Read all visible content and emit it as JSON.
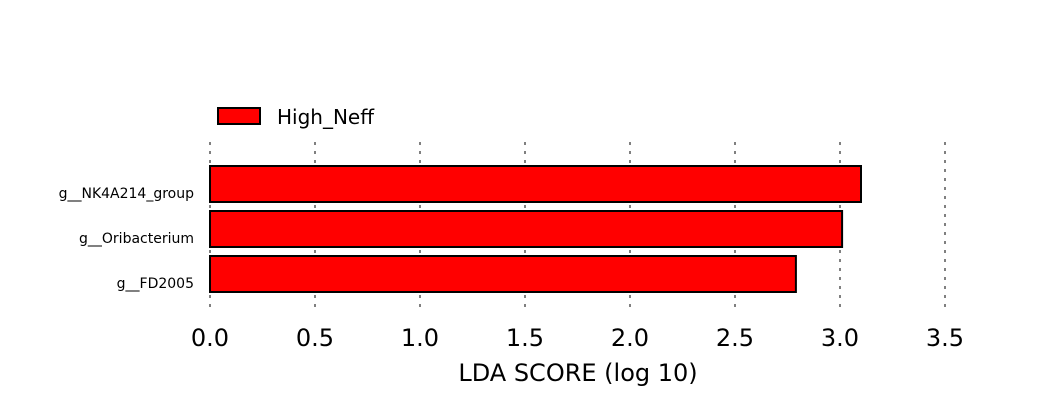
{
  "chart_data": {
    "type": "bar",
    "orientation": "horizontal",
    "categories": [
      "g__NK4A214_group",
      "g__Oribacterium",
      "g__FD2005"
    ],
    "series": [
      {
        "name": "High_Neff",
        "values": [
          3.1,
          3.01,
          2.79
        ],
        "color": "#ff0000"
      }
    ],
    "xlabel": "LDA SCORE (log 10)",
    "xticks": [
      "0.0",
      "0.5",
      "1.0",
      "1.5",
      "2.0",
      "2.5",
      "3.0",
      "3.5"
    ],
    "xlim": [
      0,
      3.5
    ],
    "grid": "vertical dashed",
    "legend_position": "top-left"
  }
}
